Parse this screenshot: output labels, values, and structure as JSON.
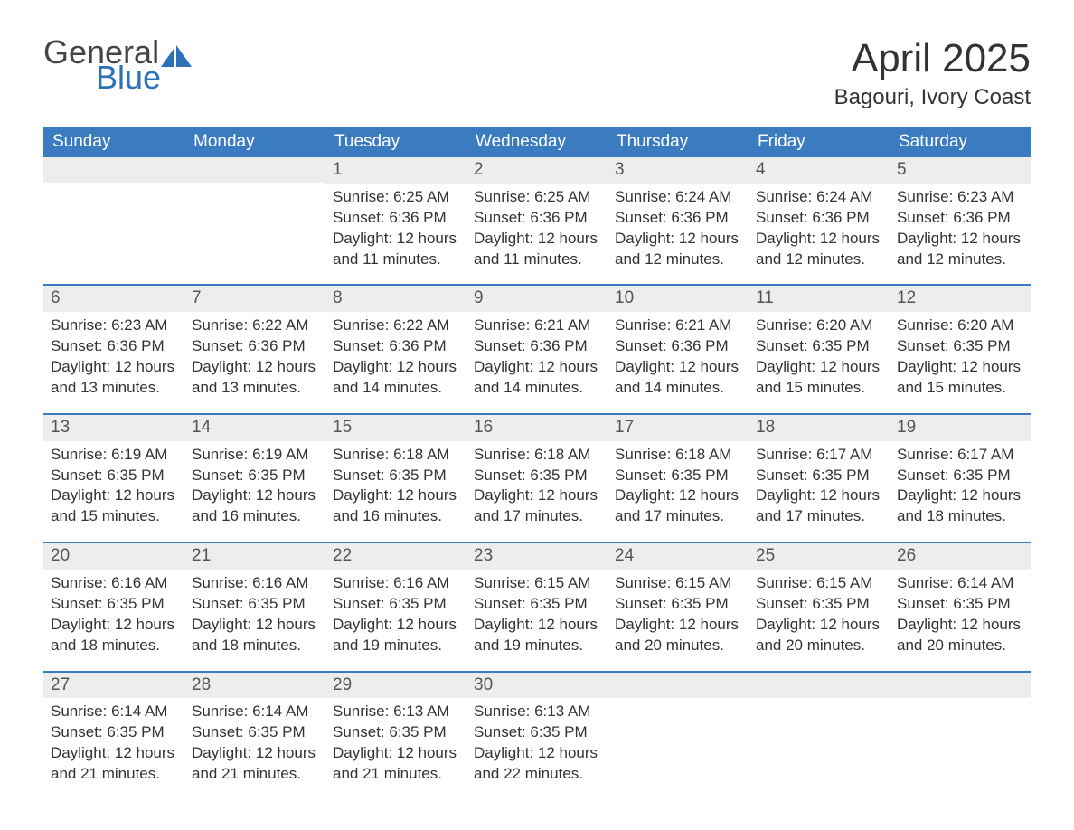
{
  "logo": {
    "text1": "General",
    "text2": "Blue"
  },
  "title": "April 2025",
  "location": "Bagouri, Ivory Coast",
  "colors": {
    "header_bg": "#3b7bbf",
    "header_text": "#ffffff",
    "daynum_bg": "#ededed",
    "border": "#3b7bbf",
    "logo_blue": "#2a71b8",
    "body_text": "#333333"
  },
  "daysOfWeek": [
    "Sunday",
    "Monday",
    "Tuesday",
    "Wednesday",
    "Thursday",
    "Friday",
    "Saturday"
  ],
  "weeks": [
    [
      {
        "n": "",
        "sunrise": "",
        "sunset": "",
        "daylight": ""
      },
      {
        "n": "",
        "sunrise": "",
        "sunset": "",
        "daylight": ""
      },
      {
        "n": "1",
        "sunrise": "Sunrise: 6:25 AM",
        "sunset": "Sunset: 6:36 PM",
        "daylight": "Daylight: 12 hours and 11 minutes."
      },
      {
        "n": "2",
        "sunrise": "Sunrise: 6:25 AM",
        "sunset": "Sunset: 6:36 PM",
        "daylight": "Daylight: 12 hours and 11 minutes."
      },
      {
        "n": "3",
        "sunrise": "Sunrise: 6:24 AM",
        "sunset": "Sunset: 6:36 PM",
        "daylight": "Daylight: 12 hours and 12 minutes."
      },
      {
        "n": "4",
        "sunrise": "Sunrise: 6:24 AM",
        "sunset": "Sunset: 6:36 PM",
        "daylight": "Daylight: 12 hours and 12 minutes."
      },
      {
        "n": "5",
        "sunrise": "Sunrise: 6:23 AM",
        "sunset": "Sunset: 6:36 PM",
        "daylight": "Daylight: 12 hours and 12 minutes."
      }
    ],
    [
      {
        "n": "6",
        "sunrise": "Sunrise: 6:23 AM",
        "sunset": "Sunset: 6:36 PM",
        "daylight": "Daylight: 12 hours and 13 minutes."
      },
      {
        "n": "7",
        "sunrise": "Sunrise: 6:22 AM",
        "sunset": "Sunset: 6:36 PM",
        "daylight": "Daylight: 12 hours and 13 minutes."
      },
      {
        "n": "8",
        "sunrise": "Sunrise: 6:22 AM",
        "sunset": "Sunset: 6:36 PM",
        "daylight": "Daylight: 12 hours and 14 minutes."
      },
      {
        "n": "9",
        "sunrise": "Sunrise: 6:21 AM",
        "sunset": "Sunset: 6:36 PM",
        "daylight": "Daylight: 12 hours and 14 minutes."
      },
      {
        "n": "10",
        "sunrise": "Sunrise: 6:21 AM",
        "sunset": "Sunset: 6:36 PM",
        "daylight": "Daylight: 12 hours and 14 minutes."
      },
      {
        "n": "11",
        "sunrise": "Sunrise: 6:20 AM",
        "sunset": "Sunset: 6:35 PM",
        "daylight": "Daylight: 12 hours and 15 minutes."
      },
      {
        "n": "12",
        "sunrise": "Sunrise: 6:20 AM",
        "sunset": "Sunset: 6:35 PM",
        "daylight": "Daylight: 12 hours and 15 minutes."
      }
    ],
    [
      {
        "n": "13",
        "sunrise": "Sunrise: 6:19 AM",
        "sunset": "Sunset: 6:35 PM",
        "daylight": "Daylight: 12 hours and 15 minutes."
      },
      {
        "n": "14",
        "sunrise": "Sunrise: 6:19 AM",
        "sunset": "Sunset: 6:35 PM",
        "daylight": "Daylight: 12 hours and 16 minutes."
      },
      {
        "n": "15",
        "sunrise": "Sunrise: 6:18 AM",
        "sunset": "Sunset: 6:35 PM",
        "daylight": "Daylight: 12 hours and 16 minutes."
      },
      {
        "n": "16",
        "sunrise": "Sunrise: 6:18 AM",
        "sunset": "Sunset: 6:35 PM",
        "daylight": "Daylight: 12 hours and 17 minutes."
      },
      {
        "n": "17",
        "sunrise": "Sunrise: 6:18 AM",
        "sunset": "Sunset: 6:35 PM",
        "daylight": "Daylight: 12 hours and 17 minutes."
      },
      {
        "n": "18",
        "sunrise": "Sunrise: 6:17 AM",
        "sunset": "Sunset: 6:35 PM",
        "daylight": "Daylight: 12 hours and 17 minutes."
      },
      {
        "n": "19",
        "sunrise": "Sunrise: 6:17 AM",
        "sunset": "Sunset: 6:35 PM",
        "daylight": "Daylight: 12 hours and 18 minutes."
      }
    ],
    [
      {
        "n": "20",
        "sunrise": "Sunrise: 6:16 AM",
        "sunset": "Sunset: 6:35 PM",
        "daylight": "Daylight: 12 hours and 18 minutes."
      },
      {
        "n": "21",
        "sunrise": "Sunrise: 6:16 AM",
        "sunset": "Sunset: 6:35 PM",
        "daylight": "Daylight: 12 hours and 18 minutes."
      },
      {
        "n": "22",
        "sunrise": "Sunrise: 6:16 AM",
        "sunset": "Sunset: 6:35 PM",
        "daylight": "Daylight: 12 hours and 19 minutes."
      },
      {
        "n": "23",
        "sunrise": "Sunrise: 6:15 AM",
        "sunset": "Sunset: 6:35 PM",
        "daylight": "Daylight: 12 hours and 19 minutes."
      },
      {
        "n": "24",
        "sunrise": "Sunrise: 6:15 AM",
        "sunset": "Sunset: 6:35 PM",
        "daylight": "Daylight: 12 hours and 20 minutes."
      },
      {
        "n": "25",
        "sunrise": "Sunrise: 6:15 AM",
        "sunset": "Sunset: 6:35 PM",
        "daylight": "Daylight: 12 hours and 20 minutes."
      },
      {
        "n": "26",
        "sunrise": "Sunrise: 6:14 AM",
        "sunset": "Sunset: 6:35 PM",
        "daylight": "Daylight: 12 hours and 20 minutes."
      }
    ],
    [
      {
        "n": "27",
        "sunrise": "Sunrise: 6:14 AM",
        "sunset": "Sunset: 6:35 PM",
        "daylight": "Daylight: 12 hours and 21 minutes."
      },
      {
        "n": "28",
        "sunrise": "Sunrise: 6:14 AM",
        "sunset": "Sunset: 6:35 PM",
        "daylight": "Daylight: 12 hours and 21 minutes."
      },
      {
        "n": "29",
        "sunrise": "Sunrise: 6:13 AM",
        "sunset": "Sunset: 6:35 PM",
        "daylight": "Daylight: 12 hours and 21 minutes."
      },
      {
        "n": "30",
        "sunrise": "Sunrise: 6:13 AM",
        "sunset": "Sunset: 6:35 PM",
        "daylight": "Daylight: 12 hours and 22 minutes."
      },
      {
        "n": "",
        "sunrise": "",
        "sunset": "",
        "daylight": ""
      },
      {
        "n": "",
        "sunrise": "",
        "sunset": "",
        "daylight": ""
      },
      {
        "n": "",
        "sunrise": "",
        "sunset": "",
        "daylight": ""
      }
    ]
  ]
}
